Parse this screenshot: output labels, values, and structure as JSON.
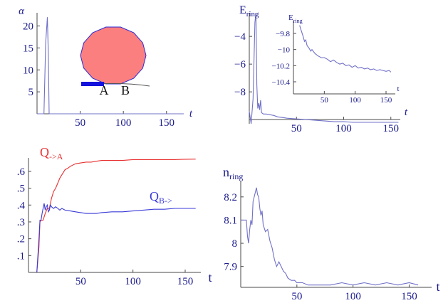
{
  "chart_data": [
    {
      "id": "alpha",
      "type": "line",
      "ylabel": "α",
      "xlabel": "t",
      "xlim": [
        0,
        170
      ],
      "ylim": [
        0,
        23
      ],
      "xticks": [
        50,
        100,
        150
      ],
      "yticks": [
        5,
        10,
        15,
        20
      ],
      "series": [
        {
          "color": "#7070c8",
          "x": [
            0,
            5,
            8,
            10,
            12,
            13,
            14,
            15,
            170
          ],
          "y": [
            0,
            0,
            0,
            16,
            22,
            14,
            0,
            0,
            0
          ]
        }
      ],
      "inset_labels": {
        "a": "A",
        "b": "B"
      },
      "inset_colors": {
        "disk_fill": "#fb7f7f",
        "disk_edge": "#2a2ad6",
        "bar": "#1212dc"
      }
    },
    {
      "id": "ering",
      "type": "line",
      "ylabel": {
        "main": "E",
        "sub": "ring"
      },
      "xlabel": "t",
      "xlim": [
        0,
        160
      ],
      "ylim": [
        -10.3,
        -2.3
      ],
      "xticks": [
        50,
        100,
        150
      ],
      "yticks": [
        -4,
        -6,
        -8
      ],
      "series": [
        {
          "color": "#7070c8",
          "x": [
            0,
            2,
            4,
            6,
            7,
            8,
            9,
            10,
            11,
            12,
            13,
            15,
            18,
            22,
            26,
            30,
            35,
            40,
            50,
            60,
            70,
            80,
            90,
            100,
            110,
            120,
            130,
            140,
            150,
            158
          ],
          "y": [
            -9.4,
            -10.3,
            -8.5,
            -3.0,
            -2.3,
            -7.5,
            -9.2,
            -8.8,
            -9.3,
            -8.6,
            -9.5,
            -9.6,
            -9.6,
            -9.65,
            -9.7,
            -9.8,
            -9.85,
            -9.9,
            -9.95,
            -10.0,
            -10.05,
            -10.1,
            -10.15,
            -10.15,
            -10.2,
            -10.2,
            -10.2,
            -10.2,
            -10.2,
            -10.2
          ]
        }
      ]
    },
    {
      "id": "ering-inset",
      "type": "line",
      "ylabel": {
        "main": "E",
        "sub": "ring"
      },
      "xlabel": "t",
      "xlim": [
        0,
        165
      ],
      "ylim": [
        -10.55,
        -9.65
      ],
      "xticks": [
        50,
        100,
        150
      ],
      "yticks": [
        -9.8,
        -10.0,
        -10.2,
        -10.4
      ],
      "series": [
        {
          "color": "#7070c8",
          "x": [
            10,
            12,
            15,
            18,
            20,
            22,
            25,
            28,
            30,
            35,
            40,
            45,
            50,
            55,
            60,
            65,
            70,
            75,
            80,
            85,
            90,
            95,
            100,
            105,
            110,
            115,
            120,
            125,
            130,
            135,
            140,
            145,
            150,
            155,
            158
          ],
          "y": [
            -9.7,
            -9.75,
            -9.82,
            -9.9,
            -9.88,
            -9.95,
            -9.98,
            -10.02,
            -10.0,
            -10.05,
            -10.08,
            -10.1,
            -10.1,
            -10.12,
            -10.15,
            -10.13,
            -10.16,
            -10.18,
            -10.17,
            -10.2,
            -10.19,
            -10.22,
            -10.2,
            -10.23,
            -10.22,
            -10.24,
            -10.23,
            -10.25,
            -10.24,
            -10.26,
            -10.25,
            -10.26,
            -10.27,
            -10.26,
            -10.28
          ]
        }
      ]
    },
    {
      "id": "q",
      "type": "line",
      "xlabel": "t",
      "xlim": [
        0,
        165
      ],
      "ylim": [
        0,
        0.68
      ],
      "xticks": [
        50,
        100,
        150
      ],
      "yticks": [
        0.1,
        0.2,
        0.3,
        0.4,
        0.5,
        0.6
      ],
      "series": [
        {
          "name": {
            "main": "Q",
            "sub": "->A"
          },
          "color": "#e83030",
          "x": [
            8,
            10,
            11,
            12,
            14,
            16,
            18,
            20,
            22,
            24,
            26,
            28,
            30,
            32,
            35,
            38,
            40,
            45,
            50,
            55,
            60,
            65,
            70,
            75,
            80,
            90,
            100,
            110,
            120,
            130,
            140,
            150,
            160
          ],
          "y": [
            0,
            0.15,
            0.3,
            0.31,
            0.31,
            0.35,
            0.38,
            0.38,
            0.44,
            0.48,
            0.5,
            0.53,
            0.56,
            0.58,
            0.61,
            0.62,
            0.63,
            0.645,
            0.65,
            0.655,
            0.655,
            0.66,
            0.665,
            0.665,
            0.665,
            0.665,
            0.67,
            0.67,
            0.67,
            0.67,
            0.67,
            0.672,
            0.673
          ]
        },
        {
          "name": {
            "main": "Q",
            "sub": "B->"
          },
          "color": "#3a3ad8",
          "x": [
            8,
            10,
            11,
            12,
            13,
            14,
            15,
            16,
            17,
            18,
            19,
            20,
            21,
            22,
            24,
            26,
            28,
            30,
            32,
            35,
            40,
            45,
            50,
            55,
            60,
            65,
            70,
            80,
            90,
            100,
            110,
            120,
            130,
            140,
            150,
            160
          ],
          "y": [
            0,
            0.2,
            0.31,
            0.31,
            0.35,
            0.38,
            0.41,
            0.37,
            0.39,
            0.4,
            0.36,
            0.37,
            0.4,
            0.39,
            0.38,
            0.39,
            0.38,
            0.37,
            0.38,
            0.37,
            0.365,
            0.36,
            0.355,
            0.35,
            0.35,
            0.35,
            0.355,
            0.36,
            0.36,
            0.365,
            0.37,
            0.375,
            0.375,
            0.38,
            0.38,
            0.38
          ]
        }
      ]
    },
    {
      "id": "nring",
      "type": "line",
      "ylabel": {
        "main": "n",
        "sub": "ring"
      },
      "xlabel": "t",
      "xlim": [
        0,
        170
      ],
      "ylim": [
        7.81,
        8.27
      ],
      "xticks": [
        50,
        100,
        150
      ],
      "yticks": [
        7.9,
        8.0,
        8.1,
        8.2
      ],
      "series": [
        {
          "color": "#7070c8",
          "x": [
            0,
            5,
            6,
            7,
            8,
            9,
            10,
            11,
            12,
            13,
            14,
            15,
            16,
            17,
            18,
            19,
            20,
            22,
            24,
            26,
            28,
            30,
            32,
            34,
            36,
            38,
            40,
            42,
            45,
            48,
            50,
            55,
            60,
            70,
            80,
            90,
            100,
            110,
            120,
            130,
            140,
            150,
            158
          ],
          "y": [
            8.1,
            8.1,
            8.03,
            8.0,
            8.06,
            8.1,
            8.08,
            8.18,
            8.2,
            8.22,
            8.24,
            8.21,
            8.2,
            8.15,
            8.12,
            8.14,
            8.08,
            8.05,
            8.06,
            8.01,
            7.98,
            7.93,
            7.9,
            7.92,
            7.9,
            7.88,
            7.87,
            7.85,
            7.84,
            7.84,
            7.83,
            7.83,
            7.82,
            7.82,
            7.82,
            7.83,
            7.82,
            7.83,
            7.82,
            7.83,
            7.82,
            7.83,
            7.82
          ]
        }
      ]
    }
  ]
}
